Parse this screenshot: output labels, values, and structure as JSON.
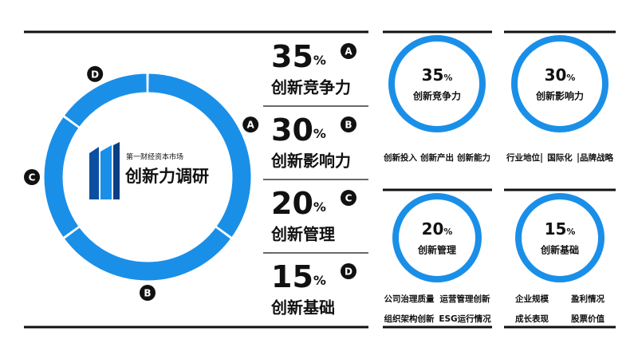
{
  "chart_data": {
    "type": "donut",
    "center_subtitle": "第一财经资本市场",
    "center_title": "创新力调研",
    "categories": [
      "A",
      "B",
      "C",
      "D"
    ],
    "names": [
      "创新竞争力",
      "创新影响力",
      "创新管理",
      "创新基础"
    ],
    "values": [
      35,
      30,
      20,
      15
    ],
    "value_labels": [
      "35%",
      "30%",
      "20%",
      "15%"
    ],
    "color": "#1a8fe8"
  },
  "cards": [
    {
      "rows": [
        [
          "创新投入",
          "创新产出",
          "创新能力"
        ]
      ]
    },
    {
      "rows": [
        [
          "行业地位",
          "国际化",
          "品牌战略"
        ]
      ],
      "separators": true
    },
    {
      "rows": [
        [
          "公司治理质量",
          "运营管理创新"
        ],
        [
          "组织架构创新",
          "ESG运行情况"
        ]
      ]
    },
    {
      "rows": [
        [
          "企业规模",
          "盈利情况"
        ],
        [
          "成长表现",
          "股票价值"
        ]
      ]
    }
  ]
}
